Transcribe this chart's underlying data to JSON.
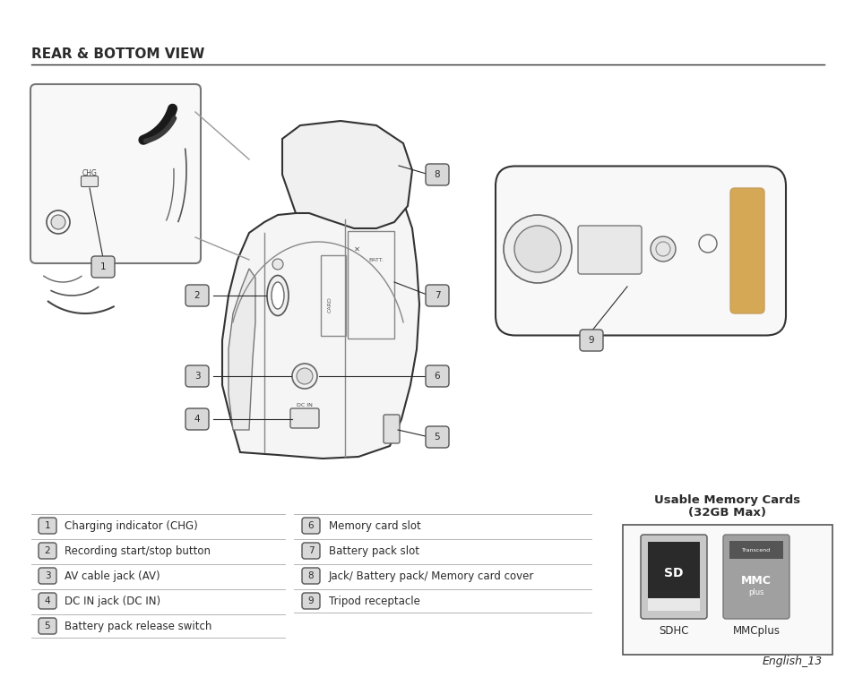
{
  "title": "REAR & BOTTOM VIEW",
  "bg_color": "#ffffff",
  "text_color": "#2b2b2b",
  "line_color": "#333333",
  "badge_bg": "#d8d8d8",
  "legend_items_left": [
    {
      "num": "1",
      "text": "Charging indicator (CHG)"
    },
    {
      "num": "2",
      "text": "Recording start/stop button"
    },
    {
      "num": "3",
      "text": "AV cable jack (AV)"
    },
    {
      "num": "4",
      "text": "DC IN jack (DC IN)"
    },
    {
      "num": "5",
      "text": "Battery pack release switch"
    }
  ],
  "legend_items_right": [
    {
      "num": "6",
      "text": "Memory card slot"
    },
    {
      "num": "7",
      "text": "Battery pack slot"
    },
    {
      "num": "8",
      "text": "Jack/ Battery pack/ Memory card cover"
    },
    {
      "num": "9",
      "text": "Tripod receptacle"
    }
  ],
  "memory_title_line1": "Usable Memory Cards",
  "memory_title_line2": "(32GB Max)",
  "memory_items": [
    "SDHC",
    "MMCplus"
  ],
  "footer": "English_13"
}
